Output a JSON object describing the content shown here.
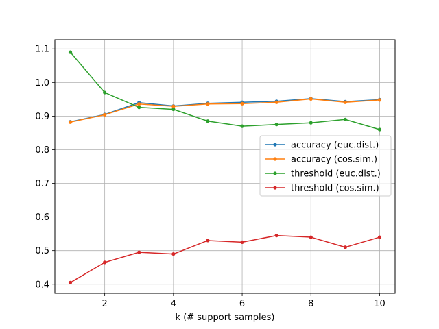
{
  "chart_data": {
    "type": "line",
    "title": "",
    "xlabel": "k (# support samples)",
    "ylabel": "",
    "xlim": [
      0.55,
      10.45
    ],
    "ylim": [
      0.373,
      1.127
    ],
    "xticks": [
      2,
      4,
      6,
      8,
      10
    ],
    "yticks": [
      0.4,
      0.5,
      0.6,
      0.7,
      0.8,
      0.9,
      1.0,
      1.1
    ],
    "ytick_labels": [
      "0.4",
      "0.5",
      "0.6",
      "0.7",
      "0.8",
      "0.9",
      "1.0",
      "1.1"
    ],
    "grid": true,
    "legend_position": "center-right",
    "x": [
      1,
      2,
      3,
      4,
      5,
      6,
      7,
      8,
      9,
      10
    ],
    "series": [
      {
        "name": "accuracy (euc.dist.)",
        "color": "#1f77b4",
        "values": [
          0.883,
          0.905,
          0.94,
          0.93,
          0.938,
          0.941,
          0.944,
          0.952,
          0.943,
          0.949
        ]
      },
      {
        "name": "accuracy (cos.sim.)",
        "color": "#ff7f0e",
        "values": [
          0.882,
          0.904,
          0.936,
          0.929,
          0.936,
          0.937,
          0.941,
          0.951,
          0.941,
          0.948
        ]
      },
      {
        "name": "threshold (euc.dist.)",
        "color": "#2ca02c",
        "values": [
          1.09,
          0.97,
          0.926,
          0.92,
          0.885,
          0.87,
          0.875,
          0.88,
          0.89,
          0.86
        ]
      },
      {
        "name": "threshold (cos.sim.)",
        "color": "#d62728",
        "values": [
          0.405,
          0.465,
          0.495,
          0.49,
          0.53,
          0.525,
          0.545,
          0.54,
          0.51,
          0.54
        ]
      }
    ]
  }
}
